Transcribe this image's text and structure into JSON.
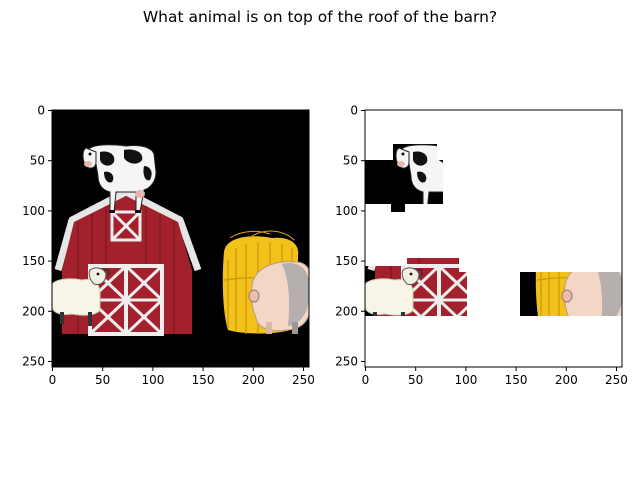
{
  "figure": {
    "title": "What animal is on top of the roof of the barn?"
  },
  "chart_data": [
    {
      "type": "image",
      "title": "",
      "xlabel": "",
      "ylabel": "",
      "xlim": [
        -0.5,
        255.5
      ],
      "ylim": [
        255.5,
        -0.5
      ],
      "xticks": [
        0,
        50,
        100,
        150,
        200,
        250
      ],
      "yticks": [
        0,
        50,
        100,
        150,
        200,
        250
      ],
      "content": "full scene: cow on barn roof, sheep, hay bale, pig on black background"
    },
    {
      "type": "image",
      "title": "",
      "xlabel": "",
      "ylabel": "",
      "xlim": [
        -0.5,
        255.5
      ],
      "ylim": [
        255.5,
        -0.5
      ],
      "xticks": [
        0,
        50,
        100,
        150,
        200,
        250
      ],
      "yticks": [
        0,
        50,
        100,
        150,
        200,
        250
      ],
      "content": "masked scene: only cow, sheep/barn strip and hay/pig strip visible on white"
    }
  ],
  "colors": {
    "black_bg": "#000000",
    "barn_red": "#a3212c",
    "barn_dark": "#7c1520",
    "barn_white": "#eeeeee",
    "hay_yellow": "#f3c21a",
    "hay_dark": "#c99708",
    "pig_pink": "#f4d6c6",
    "pig_gray": "#a9a9a9",
    "sheep_white": "#f7f5e8"
  }
}
